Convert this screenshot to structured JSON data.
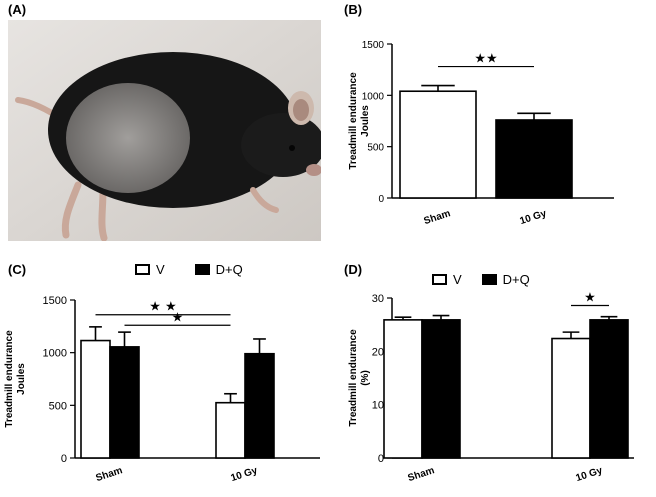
{
  "panels": {
    "A": "(A)",
    "B": "(B)",
    "C": "(C)",
    "D": "(D)"
  },
  "colors": {
    "vehicle": "#ffffff",
    "dq": "#000000",
    "stroke": "#000000"
  },
  "chart_data": [
    {
      "id": "B",
      "type": "bar",
      "categories": [
        "Sham",
        "10 Gy"
      ],
      "series": [
        {
          "name": "",
          "fill": "open",
          "values": [
            1040,
            760
          ],
          "errors": [
            55,
            65
          ]
        }
      ],
      "ylabel": "Treadmill endurance\nJoules",
      "ylim": [
        0,
        1500
      ],
      "yticks": [
        "0",
        "500",
        "1000",
        "1500"
      ],
      "significance": [
        {
          "from": [
            0,
            0
          ],
          "to": [
            1,
            0
          ],
          "value": 1280,
          "label": "★★"
        }
      ]
    },
    {
      "id": "C",
      "type": "bar",
      "categories": [
        "Sham",
        "10 Gy"
      ],
      "series": [
        {
          "name": "V",
          "fill": "open",
          "values": [
            1115,
            525
          ],
          "errors": [
            130,
            85
          ]
        },
        {
          "name": "D+Q",
          "fill": "filled",
          "values": [
            1055,
            990
          ],
          "errors": [
            140,
            140
          ]
        }
      ],
      "ylabel": "Treadmill endurance\nJoules",
      "ylim": [
        0,
        1500
      ],
      "yticks": [
        "0",
        "500",
        "1000",
        "1500"
      ],
      "significance": [
        {
          "from": [
            0,
            0
          ],
          "to": [
            1,
            0
          ],
          "value": 1360,
          "label": "★ ★"
        },
        {
          "from": [
            0,
            1
          ],
          "to": [
            1,
            0
          ],
          "value": 1260,
          "label": "★"
        }
      ]
    },
    {
      "id": "D",
      "type": "bar",
      "categories": [
        "Sham",
        "10 Gy"
      ],
      "series": [
        {
          "name": "V",
          "fill": "open",
          "values": [
            25.9,
            22.4
          ],
          "errors": [
            0.5,
            1.2
          ]
        },
        {
          "name": "D+Q",
          "fill": "filled",
          "values": [
            25.9,
            25.9
          ],
          "errors": [
            0.8,
            0.6
          ]
        }
      ],
      "ylabel": "Treadmill endurance\n(%)",
      "ylim": [
        0,
        30
      ],
      "yticks": [
        "0",
        "10",
        "20",
        "30"
      ],
      "significance": [
        {
          "from": [
            1,
            0
          ],
          "to": [
            1,
            1
          ],
          "value": 28.6,
          "label": "★"
        }
      ]
    }
  ],
  "legends": {
    "C": {
      "v": "V",
      "dq": "D+Q"
    },
    "D": {
      "v": "V",
      "dq": "D+Q"
    }
  }
}
